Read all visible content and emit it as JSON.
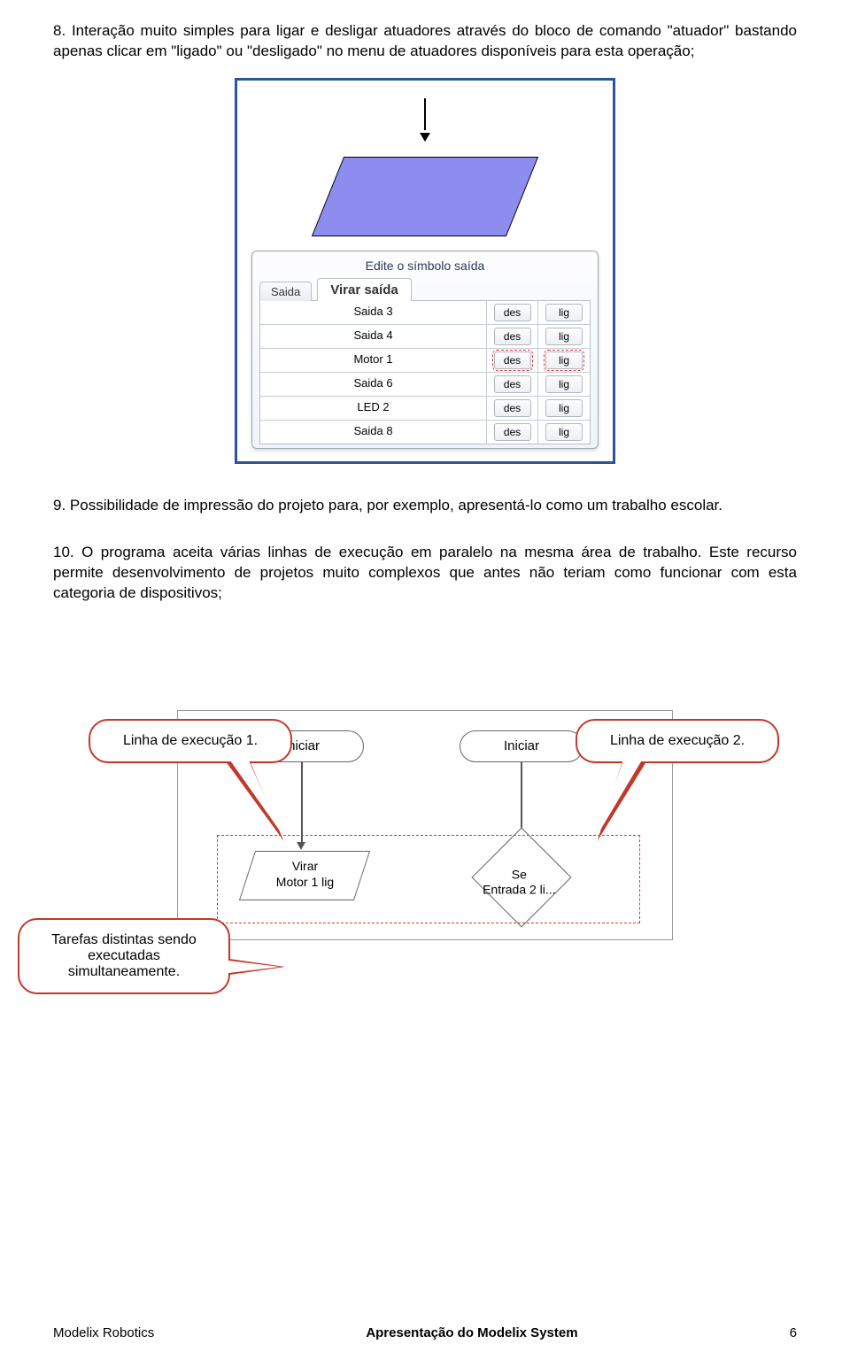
{
  "item8": {
    "num": "8.",
    "text": "Interação muito simples para ligar e desligar atuadores através do bloco de comando \"atuador\" bastando apenas clicar em \"ligado\" ou \"desligado\" no menu de atuadores disponíveis para esta operação;"
  },
  "figure1": {
    "border_color": "#2a5599",
    "parallelogram_fill": "#8d8df0",
    "dialog_title": "Edite o símbolo saída",
    "tab_small": "Saida",
    "tab_main": "Virar saída",
    "rows": [
      {
        "name": "Saida 3",
        "a": "des",
        "b": "lig",
        "hl": false
      },
      {
        "name": "Saida 4",
        "a": "des",
        "b": "lig",
        "hl": false
      },
      {
        "name": "Motor 1",
        "a": "des",
        "b": "lig",
        "hl": true
      },
      {
        "name": "Saida 6",
        "a": "des",
        "b": "lig",
        "hl": false
      },
      {
        "name": "LED 2",
        "a": "des",
        "b": "lig",
        "hl": false
      },
      {
        "name": "Saida 8",
        "a": "des",
        "b": "lig",
        "hl": false
      }
    ]
  },
  "item9": {
    "num": "9.",
    "text": "Possibilidade de impressão do projeto para, por exemplo, apresentá-lo como um trabalho escolar."
  },
  "item10": {
    "num": "10.",
    "text": "O programa aceita várias linhas de execução em paralelo na mesma área de trabalho. Este recurso permite desenvolvimento de projetos muito complexos que antes não teriam como funcionar com esta categoria de dispositivos;"
  },
  "callouts": {
    "exec1": "Linha de execução 1.",
    "exec2": "Linha de execução 2.",
    "tasks": "Tarefas distintas sendo executadas simultaneamente.",
    "border_color": "#c0392b"
  },
  "figure2": {
    "start_label": "Iniciar",
    "para_label": "Virar\nMotor 1 lig",
    "diamond_label": "Se\nEntrada 2 li...",
    "dashed_color": "#d23b3b"
  },
  "footer": {
    "left": "Modelix Robotics",
    "center": "Apresentação do Modelix System",
    "page": "6"
  }
}
